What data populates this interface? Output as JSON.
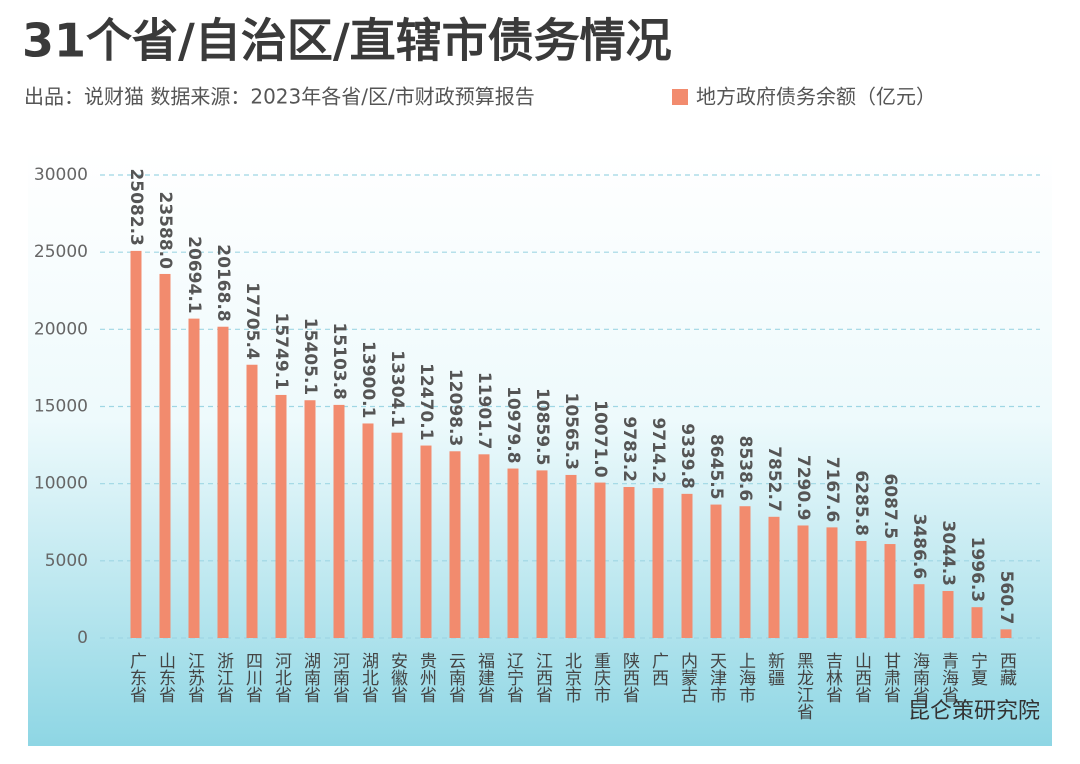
{
  "chart_data": {
    "type": "bar",
    "title": "31个省/自治区/直辖市债务情况",
    "subtitle": "出品：说财猫  数据来源：2023年各省/区/市财政预算报告",
    "watermark": "昆仑策研究院",
    "series_name": "地方政府债务余额（亿元）",
    "color": "#f28b6e",
    "categories": [
      "广东省",
      "山东省",
      "江苏省",
      "浙江省",
      "四川省",
      "河北省",
      "湖南省",
      "河南省",
      "湖北省",
      "安徽省",
      "贵州省",
      "云南省",
      "福建省",
      "辽宁省",
      "江西省",
      "北京市",
      "重庆市",
      "陕西省",
      "广西",
      "内蒙古",
      "天津市",
      "上海市",
      "新疆",
      "黑龙江省",
      "吉林省",
      "山西省",
      "甘肃省",
      "海南省",
      "青海省",
      "宁夏",
      "西藏"
    ],
    "values": [
      25082.3,
      23588.0,
      20694.1,
      20168.8,
      17705.4,
      15749.1,
      15405.1,
      15103.8,
      13900.1,
      13304.1,
      12470.1,
      12098.3,
      11901.7,
      10979.8,
      10859.5,
      10565.3,
      10071.0,
      9783.2,
      9714.2,
      9339.8,
      8645.5,
      8538.6,
      7852.7,
      7290.9,
      7167.6,
      6285.8,
      6087.5,
      3486.6,
      3044.3,
      1996.3,
      560.7
    ],
    "value_labels": [
      "25082.3",
      "23588.0",
      "20694.1",
      "20168.8",
      "17705.4",
      "15749.1",
      "15405.1",
      "15103.8",
      "13900.1",
      "13304.1",
      "12470.1",
      "12098.3",
      "11901.7",
      "10979.8",
      "10859.5",
      "10565.3",
      "10071.0",
      "9783.2",
      "9714.2",
      "9339.8",
      "8645.5",
      "8538.6",
      "7852.7",
      "7290.9",
      "7167.6",
      "6285.8",
      "6087.5",
      "3486.6",
      "3044.3",
      "1996.3",
      "560.7"
    ],
    "ylim": [
      0,
      30000
    ],
    "yticks": [
      0,
      5000,
      10000,
      15000,
      20000,
      25000,
      30000
    ],
    "grid": true
  }
}
